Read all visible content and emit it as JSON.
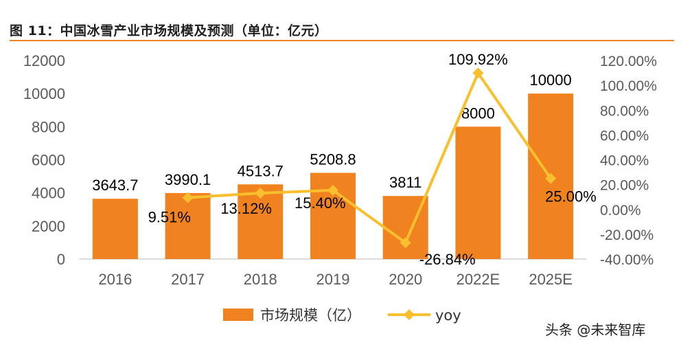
{
  "page": {
    "figure_title": "图 11：中国冰雪产业市场规模及预测（单位：亿元）",
    "watermark": "头条 @未来智库"
  },
  "colors": {
    "bar": "#f0831f",
    "line": "#f9bf2e",
    "title_rule": "#f0831f",
    "axis": "#d0d0d0"
  },
  "chart_data": {
    "type": "bar",
    "categories": [
      "2016",
      "2017",
      "2018",
      "2019",
      "2020",
      "2022E",
      "2025E"
    ],
    "series": [
      {
        "name": "市场规模（亿）",
        "type": "bar",
        "axis": "left",
        "values": [
          3643.7,
          3990.1,
          4513.7,
          5208.8,
          3811,
          8000,
          10000
        ],
        "labels": [
          "3643.7",
          "3990.1",
          "4513.7",
          "5208.8",
          "3811",
          "8000",
          "10000"
        ]
      },
      {
        "name": "yoy",
        "type": "line",
        "axis": "right",
        "marker": "diamond",
        "values": [
          null,
          9.51,
          13.12,
          15.4,
          -26.84,
          109.92,
          25.0
        ],
        "labels": [
          "",
          "9.51%",
          "13.12%",
          "15.40%",
          "-26.84%",
          "109.92%",
          "25.00%"
        ]
      }
    ],
    "y_left": {
      "min": 0,
      "max": 12000,
      "ticks": [
        "0",
        "2000",
        "4000",
        "6000",
        "8000",
        "10000",
        "12000"
      ]
    },
    "y_right": {
      "min": -40,
      "max": 120,
      "ticks": [
        "-40.00%",
        "-20.00%",
        "0.00%",
        "20.00%",
        "40.00%",
        "60.00%",
        "80.00%",
        "100.00%",
        "120.00%"
      ]
    },
    "grid": false,
    "legend_position": "bottom"
  }
}
